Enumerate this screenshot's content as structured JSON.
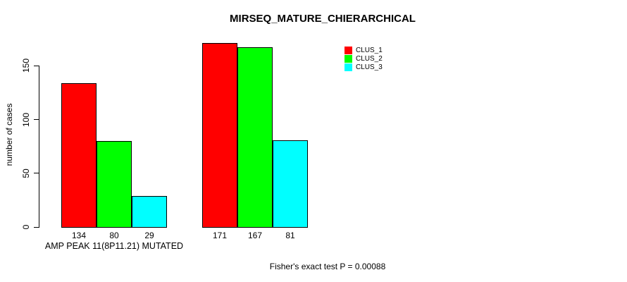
{
  "title": "MIRSEQ_MATURE_CHIERARCHICAL",
  "footer_note": "Fisher's exact test P = 0.00088",
  "chart_data": {
    "type": "bar",
    "title": "MIRSEQ_MATURE_CHIERARCHICAL",
    "xlabel": "",
    "ylabel": "number of cases",
    "categories": [
      "AMP PEAK 11(8P11.21) MUTATED",
      ""
    ],
    "series": [
      {
        "name": "CLUS_1",
        "color": "#ff0000",
        "values": [
          134,
          171
        ]
      },
      {
        "name": "CLUS_2",
        "color": "#00ff00",
        "values": [
          80,
          167
        ]
      },
      {
        "name": "CLUS_3",
        "color": "#00ffff",
        "values": [
          29,
          81
        ]
      }
    ],
    "yticks": [
      0,
      50,
      100,
      150
    ],
    "ylim": [
      0,
      175
    ],
    "bar_value_labels": [
      134,
      80,
      29,
      171,
      167,
      81
    ],
    "grid": false,
    "legend_position": "top-right",
    "annotation": "Fisher's exact test P = 0.00088"
  }
}
